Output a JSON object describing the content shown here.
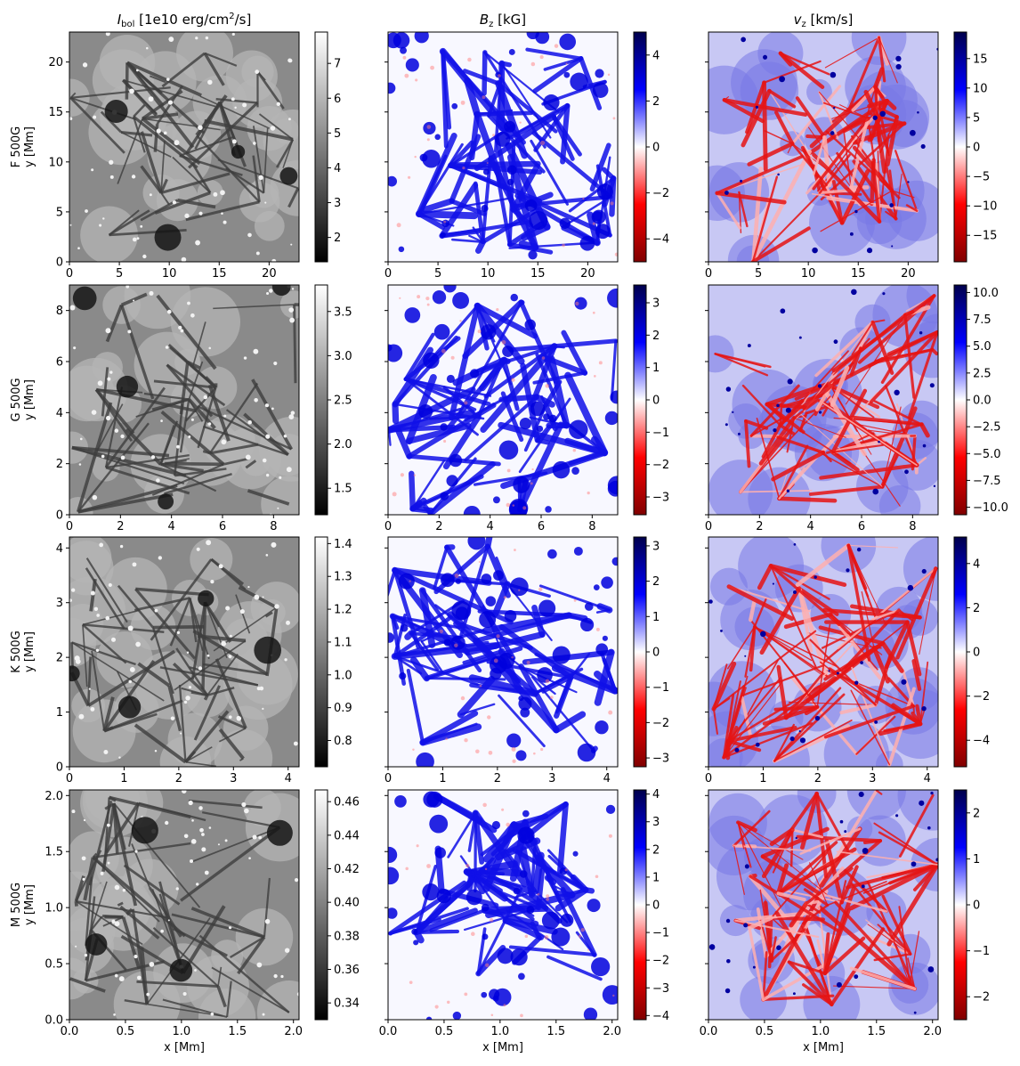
{
  "figure": {
    "column_titles": [
      {
        "main": "I",
        "sub": "bol",
        "rest": " [1e10 erg/cm",
        "sup": "2",
        "end": "/s]"
      },
      {
        "main": "B",
        "sub": "z",
        "rest": " [kG]",
        "sup": "",
        "end": ""
      },
      {
        "main": "v",
        "sub": "z",
        "rest": " [km/s]",
        "sup": "",
        "end": ""
      }
    ],
    "row_labels": [
      "F 500G",
      "G 500G",
      "K 500G",
      "M 500G"
    ],
    "ylabel": "y [Mm]",
    "xlabel": "x [Mm]"
  },
  "colors": {
    "gray_low": "#000000",
    "gray_high": "#ffffff",
    "seismic_neg_end": "#800000",
    "seismic_neg": "#ff0000",
    "seismic_mid": "#ffffff",
    "seismic_pos": "#0000ff",
    "seismic_pos_end": "#00004c"
  },
  "chart_data": [
    {
      "type": "heatmap",
      "row": 0,
      "col": 0,
      "star": "F 500G",
      "quantity": "I_bol",
      "cmap": "gray",
      "colorbar_range": [
        1.3,
        7.9
      ],
      "colorbar_ticks": [
        "2",
        "3",
        "4",
        "5",
        "6",
        "7"
      ],
      "colorbar_tick_values": [
        2,
        3,
        4,
        5,
        6,
        7
      ],
      "xlim": [
        0,
        23
      ],
      "ylim": [
        0,
        23
      ],
      "xticks": [
        "0",
        "5",
        "10",
        "15",
        "20"
      ],
      "xtick_values": [
        0,
        5,
        10,
        15,
        20
      ],
      "yticks": [
        "0",
        "5",
        "10",
        "15",
        "20"
      ],
      "ytick_values": [
        0,
        5,
        10,
        15,
        20
      ]
    },
    {
      "type": "heatmap",
      "row": 0,
      "col": 1,
      "star": "F 500G",
      "quantity": "B_z",
      "cmap": "seismic_r",
      "colorbar_range": [
        -5,
        5
      ],
      "colorbar_ticks": [
        "−4",
        "−2",
        "0",
        "2",
        "4"
      ],
      "colorbar_tick_values": [
        -4,
        -2,
        0,
        2,
        4
      ],
      "xlim": [
        0,
        23
      ],
      "ylim": [
        0,
        23
      ],
      "xticks": [
        "0",
        "5",
        "10",
        "15",
        "20"
      ],
      "xtick_values": [
        0,
        5,
        10,
        15,
        20
      ],
      "yticks": [],
      "ytick_values": [
        0,
        5,
        10,
        15,
        20
      ]
    },
    {
      "type": "heatmap",
      "row": 0,
      "col": 2,
      "star": "F 500G",
      "quantity": "v_z",
      "cmap": "seismic_r",
      "colorbar_range": [
        -19.5,
        19.5
      ],
      "colorbar_ticks": [
        "−15",
        "−10",
        "−5",
        "0",
        "5",
        "10",
        "15"
      ],
      "colorbar_tick_values": [
        -15,
        -10,
        -5,
        0,
        5,
        10,
        15
      ],
      "xlim": [
        0,
        23
      ],
      "ylim": [
        0,
        23
      ],
      "xticks": [
        "0",
        "5",
        "10",
        "15",
        "20"
      ],
      "xtick_values": [
        0,
        5,
        10,
        15,
        20
      ],
      "yticks": [],
      "ytick_values": [
        0,
        5,
        10,
        15,
        20
      ]
    },
    {
      "type": "heatmap",
      "row": 1,
      "col": 0,
      "star": "G 500G",
      "quantity": "I_bol",
      "cmap": "gray",
      "colorbar_range": [
        1.2,
        3.8
      ],
      "colorbar_ticks": [
        "1.5",
        "2.0",
        "2.5",
        "3.0",
        "3.5"
      ],
      "colorbar_tick_values": [
        1.5,
        2.0,
        2.5,
        3.0,
        3.5
      ],
      "xlim": [
        0,
        9
      ],
      "ylim": [
        0,
        9
      ],
      "xticks": [
        "0",
        "2",
        "4",
        "6",
        "8"
      ],
      "xtick_values": [
        0,
        2,
        4,
        6,
        8
      ],
      "yticks": [
        "0",
        "2",
        "4",
        "6",
        "8"
      ],
      "ytick_values": [
        0,
        2,
        4,
        6,
        8
      ]
    },
    {
      "type": "heatmap",
      "row": 1,
      "col": 1,
      "star": "G 500G",
      "quantity": "B_z",
      "cmap": "seismic_r",
      "colorbar_range": [
        -3.55,
        3.55
      ],
      "colorbar_ticks": [
        "−3",
        "−2",
        "−1",
        "0",
        "1",
        "2",
        "3"
      ],
      "colorbar_tick_values": [
        -3,
        -2,
        -1,
        0,
        1,
        2,
        3
      ],
      "xlim": [
        0,
        9
      ],
      "ylim": [
        0,
        9
      ],
      "xticks": [
        "0",
        "2",
        "4",
        "6",
        "8"
      ],
      "xtick_values": [
        0,
        2,
        4,
        6,
        8
      ],
      "yticks": [],
      "ytick_values": [
        0,
        2,
        4,
        6,
        8
      ]
    },
    {
      "type": "heatmap",
      "row": 1,
      "col": 2,
      "star": "G 500G",
      "quantity": "v_z",
      "cmap": "seismic_r",
      "colorbar_range": [
        -10.7,
        10.7
      ],
      "colorbar_ticks": [
        "−10.0",
        "−7.5",
        "−5.0",
        "−2.5",
        "0.0",
        "2.5",
        "5.0",
        "7.5",
        "10.0"
      ],
      "colorbar_tick_values": [
        -10,
        -7.5,
        -5,
        -2.5,
        0,
        2.5,
        5,
        7.5,
        10
      ],
      "xlim": [
        0,
        9
      ],
      "ylim": [
        0,
        9
      ],
      "xticks": [
        "0",
        "2",
        "4",
        "6",
        "8"
      ],
      "xtick_values": [
        0,
        2,
        4,
        6,
        8
      ],
      "yticks": [],
      "ytick_values": [
        0,
        2,
        4,
        6,
        8
      ]
    },
    {
      "type": "heatmap",
      "row": 2,
      "col": 0,
      "star": "K 500G",
      "quantity": "I_bol",
      "cmap": "gray",
      "colorbar_range": [
        0.72,
        1.42
      ],
      "colorbar_ticks": [
        "0.8",
        "0.9",
        "1.0",
        "1.1",
        "1.2",
        "1.3",
        "1.4"
      ],
      "colorbar_tick_values": [
        0.8,
        0.9,
        1.0,
        1.1,
        1.2,
        1.3,
        1.4
      ],
      "xlim": [
        0,
        4.2
      ],
      "ylim": [
        0,
        4.2
      ],
      "xticks": [
        "0",
        "1",
        "2",
        "3",
        "4"
      ],
      "xtick_values": [
        0,
        1,
        2,
        3,
        4
      ],
      "yticks": [
        "0",
        "1",
        "2",
        "3",
        "4"
      ],
      "ytick_values": [
        0,
        1,
        2,
        3,
        4
      ]
    },
    {
      "type": "heatmap",
      "row": 2,
      "col": 1,
      "star": "K 500G",
      "quantity": "B_z",
      "cmap": "seismic_r",
      "colorbar_range": [
        -3.25,
        3.25
      ],
      "colorbar_ticks": [
        "−3",
        "−2",
        "−1",
        "0",
        "1",
        "2",
        "3"
      ],
      "colorbar_tick_values": [
        -3,
        -2,
        -1,
        0,
        1,
        2,
        3
      ],
      "xlim": [
        0,
        4.2
      ],
      "ylim": [
        0,
        4.2
      ],
      "xticks": [
        "0",
        "1",
        "2",
        "3",
        "4"
      ],
      "xtick_values": [
        0,
        1,
        2,
        3,
        4
      ],
      "yticks": [],
      "ytick_values": [
        0,
        1,
        2,
        3,
        4
      ]
    },
    {
      "type": "heatmap",
      "row": 2,
      "col": 2,
      "star": "K 500G",
      "quantity": "v_z",
      "cmap": "seismic_r",
      "colorbar_range": [
        -5.2,
        5.2
      ],
      "colorbar_ticks": [
        "−4",
        "−2",
        "0",
        "2",
        "4"
      ],
      "colorbar_tick_values": [
        -4,
        -2,
        0,
        2,
        4
      ],
      "xlim": [
        0,
        4.2
      ],
      "ylim": [
        0,
        4.2
      ],
      "xticks": [
        "0",
        "1",
        "2",
        "3",
        "4"
      ],
      "xtick_values": [
        0,
        1,
        2,
        3,
        4
      ],
      "yticks": [],
      "ytick_values": [
        0,
        1,
        2,
        3,
        4
      ]
    },
    {
      "type": "heatmap",
      "row": 3,
      "col": 0,
      "star": "M 500G",
      "quantity": "I_bol",
      "cmap": "gray",
      "colorbar_range": [
        0.33,
        0.467
      ],
      "colorbar_ticks": [
        "0.34",
        "0.36",
        "0.38",
        "0.40",
        "0.42",
        "0.44",
        "0.46"
      ],
      "colorbar_tick_values": [
        0.34,
        0.36,
        0.38,
        0.4,
        0.42,
        0.44,
        0.46
      ],
      "xlim": [
        0,
        2.05
      ],
      "ylim": [
        0,
        2.05
      ],
      "xticks": [
        "0.0",
        "0.5",
        "1.0",
        "1.5",
        "2.0"
      ],
      "xtick_values": [
        0,
        0.5,
        1.0,
        1.5,
        2.0
      ],
      "yticks": [
        "0.0",
        "0.5",
        "1.0",
        "1.5",
        "2.0"
      ],
      "ytick_values": [
        0,
        0.5,
        1.0,
        1.5,
        2.0
      ]
    },
    {
      "type": "heatmap",
      "row": 3,
      "col": 1,
      "star": "M 500G",
      "quantity": "B_z",
      "cmap": "seismic_r",
      "colorbar_range": [
        -4.15,
        4.15
      ],
      "colorbar_ticks": [
        "−4",
        "−3",
        "−2",
        "−1",
        "0",
        "1",
        "2",
        "3",
        "4"
      ],
      "colorbar_tick_values": [
        -4,
        -3,
        -2,
        -1,
        0,
        1,
        2,
        3,
        4
      ],
      "xlim": [
        0,
        2.05
      ],
      "ylim": [
        0,
        2.05
      ],
      "xticks": [
        "0.0",
        "0.5",
        "1.0",
        "1.5",
        "2.0"
      ],
      "xtick_values": [
        0,
        0.5,
        1.0,
        1.5,
        2.0
      ],
      "yticks": [],
      "ytick_values": [
        0,
        0.5,
        1.0,
        1.5,
        2.0
      ]
    },
    {
      "type": "heatmap",
      "row": 3,
      "col": 2,
      "star": "M 500G",
      "quantity": "v_z",
      "cmap": "seismic_r",
      "colorbar_range": [
        -2.5,
        2.5
      ],
      "colorbar_ticks": [
        "−2",
        "−1",
        "0",
        "1",
        "2"
      ],
      "colorbar_tick_values": [
        -2,
        -1,
        0,
        1,
        2
      ],
      "xlim": [
        0,
        2.05
      ],
      "ylim": [
        0,
        2.05
      ],
      "xticks": [
        "0.0",
        "0.5",
        "1.0",
        "1.5",
        "2.0"
      ],
      "xtick_values": [
        0,
        0.5,
        1.0,
        1.5,
        2.0
      ],
      "yticks": [],
      "ytick_values": [
        0,
        0.5,
        1.0,
        1.5,
        2.0
      ]
    }
  ]
}
